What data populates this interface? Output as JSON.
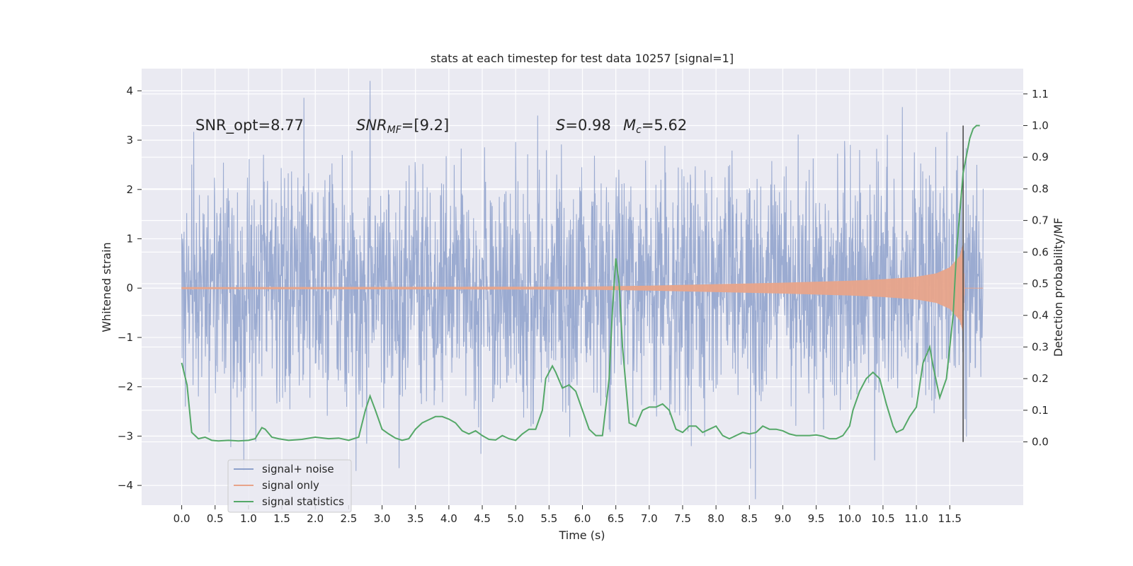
{
  "chart_data": {
    "type": "line",
    "title": "stats at each timestep for test data 10257 [signal=1]",
    "xlabel": "Time (s)",
    "ylabel": "Whitened strain",
    "ylabel_right": "Detection probability/MF",
    "xlim": [
      -0.6,
      12.6
    ],
    "ylim": [
      -4.4,
      4.45
    ],
    "ylim_right": [
      -0.2,
      1.18
    ],
    "x_ticks": [
      "0.0",
      "0.5",
      "1.0",
      "1.5",
      "2.0",
      "2.5",
      "3.0",
      "3.5",
      "4.0",
      "4.5",
      "5.0",
      "5.5",
      "6.0",
      "6.5",
      "7.0",
      "7.5",
      "8.0",
      "8.5",
      "9.0",
      "9.5",
      "10.0",
      "10.5",
      "11.0",
      "11.5"
    ],
    "y_ticks": [
      "4",
      "3",
      "2",
      "1",
      "0",
      "−1",
      "−2",
      "−3",
      "−4"
    ],
    "y_ticks_right": [
      "1.1",
      "1.0",
      "0.9",
      "0.8",
      "0.7",
      "0.6",
      "0.5",
      "0.4",
      "0.3",
      "0.2",
      "0.1",
      "0.0"
    ],
    "grid": true,
    "legend_position": "lower-left",
    "annotations": {
      "snr_opt": "SNR_opt=8.77",
      "snr_mf_main": "SNR",
      "snr_mf_sub": "MF",
      "snr_mf_value": "=[9.2]",
      "s_symbol": "S",
      "s_value": "=0.98",
      "mc_symbol": "M",
      "mc_sub": "c",
      "mc_value": "=5.62"
    },
    "vline_x": 11.7,
    "series": [
      {
        "name": "signal+ noise",
        "color": "#8da0cb",
        "axis": "left",
        "noise_sigma": 1.0,
        "x_range": [
          0.0,
          12.0
        ]
      },
      {
        "name": "signal only",
        "color": "#e8a48a",
        "axis": "left",
        "envelope": [
          [
            0.0,
            0.02
          ],
          [
            6.0,
            0.03
          ],
          [
            7.0,
            0.05
          ],
          [
            8.0,
            0.08
          ],
          [
            9.0,
            0.11
          ],
          [
            10.0,
            0.15
          ],
          [
            10.5,
            0.18
          ],
          [
            11.0,
            0.23
          ],
          [
            11.3,
            0.3
          ],
          [
            11.5,
            0.42
          ],
          [
            11.65,
            0.65
          ],
          [
            11.7,
            0.9
          ],
          [
            11.72,
            0.0
          ],
          [
            12.0,
            0.0
          ]
        ]
      },
      {
        "name": "signal statistics",
        "color": "#55a868",
        "axis": "right",
        "x": [
          0.0,
          0.08,
          0.15,
          0.25,
          0.35,
          0.45,
          0.55,
          0.7,
          0.85,
          1.0,
          1.1,
          1.2,
          1.25,
          1.35,
          1.45,
          1.6,
          1.8,
          2.0,
          2.2,
          2.35,
          2.5,
          2.65,
          2.75,
          2.82,
          2.9,
          3.0,
          3.1,
          3.2,
          3.3,
          3.4,
          3.5,
          3.6,
          3.7,
          3.8,
          3.9,
          4.0,
          4.1,
          4.2,
          4.3,
          4.4,
          4.5,
          4.6,
          4.7,
          4.8,
          4.9,
          5.0,
          5.1,
          5.2,
          5.3,
          5.4,
          5.45,
          5.55,
          5.6,
          5.7,
          5.8,
          5.9,
          6.0,
          6.1,
          6.2,
          6.3,
          6.4,
          6.45,
          6.5,
          6.55,
          6.6,
          6.7,
          6.8,
          6.9,
          7.0,
          7.1,
          7.2,
          7.3,
          7.4,
          7.5,
          7.6,
          7.7,
          7.8,
          7.9,
          8.0,
          8.1,
          8.2,
          8.3,
          8.4,
          8.5,
          8.6,
          8.7,
          8.8,
          8.9,
          9.0,
          9.1,
          9.2,
          9.3,
          9.4,
          9.5,
          9.6,
          9.7,
          9.8,
          9.9,
          10.0,
          10.05,
          10.15,
          10.25,
          10.35,
          10.45,
          10.55,
          10.65,
          10.7,
          10.8,
          10.9,
          11.0,
          11.1,
          11.2,
          11.25,
          11.35,
          11.45,
          11.55,
          11.6,
          11.7,
          11.8,
          11.85,
          11.9,
          11.95
        ],
        "y": [
          0.25,
          0.18,
          0.03,
          0.01,
          0.015,
          0.005,
          0.003,
          0.005,
          0.003,
          0.005,
          0.01,
          0.045,
          0.04,
          0.015,
          0.01,
          0.005,
          0.008,
          0.015,
          0.01,
          0.012,
          0.005,
          0.015,
          0.1,
          0.145,
          0.1,
          0.04,
          0.025,
          0.012,
          0.005,
          0.01,
          0.04,
          0.06,
          0.07,
          0.08,
          0.08,
          0.072,
          0.06,
          0.035,
          0.025,
          0.035,
          0.02,
          0.008,
          0.006,
          0.02,
          0.01,
          0.005,
          0.025,
          0.04,
          0.04,
          0.1,
          0.2,
          0.24,
          0.22,
          0.17,
          0.18,
          0.16,
          0.1,
          0.04,
          0.02,
          0.02,
          0.2,
          0.42,
          0.58,
          0.5,
          0.3,
          0.06,
          0.05,
          0.1,
          0.11,
          0.11,
          0.12,
          0.1,
          0.04,
          0.03,
          0.05,
          0.05,
          0.03,
          0.04,
          0.05,
          0.02,
          0.01,
          0.02,
          0.03,
          0.025,
          0.03,
          0.05,
          0.04,
          0.04,
          0.035,
          0.025,
          0.02,
          0.02,
          0.02,
          0.022,
          0.018,
          0.01,
          0.01,
          0.02,
          0.05,
          0.1,
          0.16,
          0.2,
          0.22,
          0.2,
          0.12,
          0.05,
          0.03,
          0.04,
          0.08,
          0.11,
          0.25,
          0.3,
          0.24,
          0.14,
          0.2,
          0.4,
          0.6,
          0.85,
          0.96,
          0.99,
          1.0,
          1.0
        ]
      }
    ]
  }
}
